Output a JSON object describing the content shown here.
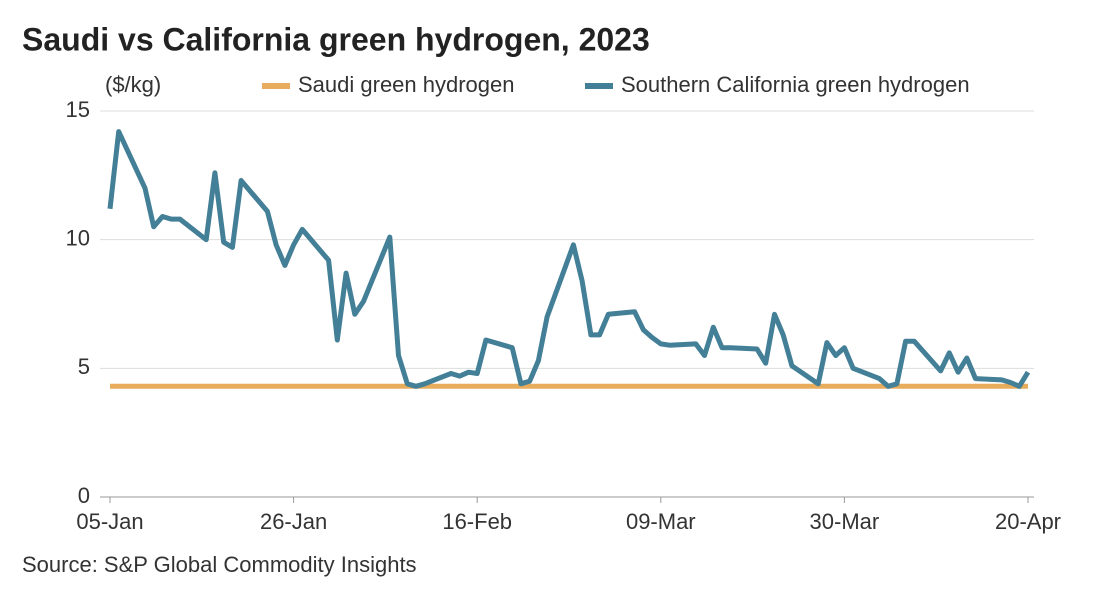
{
  "chart_data": {
    "type": "line",
    "title": "Saudi vs California green hydrogen, 2023",
    "y_label": "($/kg)",
    "source": "Source: S&P Global Commodity Insights",
    "x": [
      "05-Jan",
      "06-Jan",
      "09-Jan",
      "10-Jan",
      "11-Jan",
      "12-Jan",
      "13-Jan",
      "16-Jan",
      "17-Jan",
      "18-Jan",
      "19-Jan",
      "20-Jan",
      "23-Jan",
      "24-Jan",
      "25-Jan",
      "26-Jan",
      "27-Jan",
      "30-Jan",
      "31-Jan",
      "01-Feb",
      "02-Feb",
      "03-Feb",
      "06-Feb",
      "07-Feb",
      "08-Feb",
      "09-Feb",
      "10-Feb",
      "13-Feb",
      "14-Feb",
      "15-Feb",
      "16-Feb",
      "17-Feb",
      "20-Feb",
      "21-Feb",
      "22-Feb",
      "23-Feb",
      "24-Feb",
      "27-Feb",
      "28-Feb",
      "01-Mar",
      "02-Mar",
      "03-Mar",
      "06-Mar",
      "07-Mar",
      "08-Mar",
      "09-Mar",
      "10-Mar",
      "13-Mar",
      "14-Mar",
      "15-Mar",
      "16-Mar",
      "17-Mar",
      "20-Mar",
      "21-Mar",
      "22-Mar",
      "23-Mar",
      "24-Mar",
      "27-Mar",
      "28-Mar",
      "29-Mar",
      "30-Mar",
      "31-Mar",
      "03-Apr",
      "04-Apr",
      "05-Apr",
      "06-Apr",
      "07-Apr",
      "10-Apr",
      "11-Apr",
      "12-Apr",
      "13-Apr",
      "14-Apr",
      "17-Apr",
      "18-Apr",
      "19-Apr",
      "20-Apr"
    ],
    "series": [
      {
        "name": "Saudi green hydrogen",
        "color": "#e8ac5d",
        "values": [
          4.3,
          4.3,
          4.3,
          4.3,
          4.3,
          4.3,
          4.3,
          4.3,
          4.3,
          4.3,
          4.3,
          4.3,
          4.3,
          4.3,
          4.3,
          4.3,
          4.3,
          4.3,
          4.3,
          4.3,
          4.3,
          4.3,
          4.3,
          4.3,
          4.3,
          4.3,
          4.3,
          4.3,
          4.3,
          4.3,
          4.3,
          4.3,
          4.3,
          4.3,
          4.3,
          4.3,
          4.3,
          4.3,
          4.3,
          4.3,
          4.3,
          4.3,
          4.3,
          4.3,
          4.3,
          4.3,
          4.3,
          4.3,
          4.3,
          4.3,
          4.3,
          4.3,
          4.3,
          4.3,
          4.3,
          4.3,
          4.3,
          4.3,
          4.3,
          4.3,
          4.3,
          4.3,
          4.3,
          4.3,
          4.3,
          4.3,
          4.3,
          4.3,
          4.3,
          4.3,
          4.3,
          4.3,
          4.3,
          4.3,
          4.3,
          4.3
        ]
      },
      {
        "name": "Southern California green hydrogen",
        "color": "#437f97",
        "values": [
          11.2,
          14.2,
          12.0,
          10.5,
          10.9,
          10.8,
          10.8,
          10.0,
          12.6,
          9.9,
          9.7,
          12.3,
          11.1,
          9.8,
          9.0,
          9.8,
          10.4,
          9.2,
          6.1,
          8.7,
          7.1,
          7.6,
          10.1,
          5.5,
          4.4,
          4.3,
          4.4,
          4.8,
          4.7,
          4.85,
          4.8,
          6.1,
          5.8,
          4.4,
          4.5,
          5.3,
          7.0,
          9.8,
          8.4,
          6.3,
          6.3,
          7.1,
          7.2,
          6.5,
          6.2,
          5.95,
          5.9,
          5.95,
          5.5,
          6.6,
          5.8,
          5.8,
          5.75,
          5.2,
          7.1,
          6.3,
          5.1,
          4.4,
          6.0,
          5.5,
          5.8,
          5.0,
          4.6,
          4.3,
          4.4,
          6.05,
          6.05,
          4.9,
          5.6,
          4.85,
          5.4,
          4.6,
          4.55,
          4.45,
          4.3,
          4.85
        ]
      }
    ],
    "xlim": [
      "05-Jan",
      "20-Apr"
    ],
    "xticks": [
      "05-Jan",
      "26-Jan",
      "16-Feb",
      "09-Mar",
      "30-Mar",
      "20-Apr"
    ],
    "ylim": [
      0,
      15
    ],
    "yticks": [
      0,
      5,
      10,
      15
    ],
    "grid": true,
    "legend": "top"
  }
}
